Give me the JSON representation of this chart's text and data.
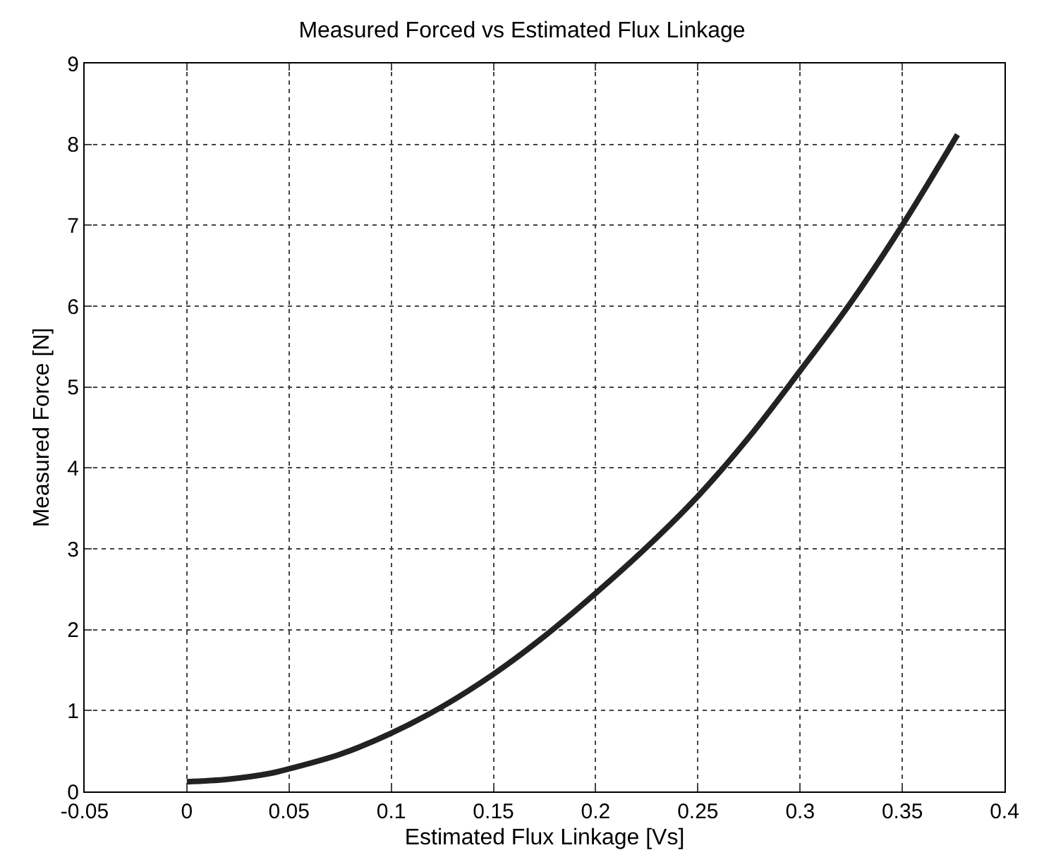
{
  "chart_data": {
    "type": "line",
    "title": "Measured Forced vs Estimated Flux Linkage",
    "xlabel": "Estimated Flux Linkage [Vs]",
    "ylabel": "Measured Force [N]",
    "series": [
      {
        "color": "#222222",
        "x": [
          0,
          0.02,
          0.04,
          0.05,
          0.075,
          0.1,
          0.125,
          0.15,
          0.175,
          0.2,
          0.225,
          0.25,
          0.275,
          0.3,
          0.325,
          0.35,
          0.377
        ],
        "values": [
          0.12,
          0.15,
          0.22,
          0.28,
          0.46,
          0.72,
          1.05,
          1.45,
          1.92,
          2.45,
          3.02,
          3.65,
          4.38,
          5.2,
          6.05,
          7.0,
          8.12
        ]
      }
    ],
    "xlim": [
      -0.05,
      0.4
    ],
    "xticks": [
      -0.05,
      0,
      0.05,
      0.1,
      0.15,
      0.2,
      0.25,
      0.3,
      0.35,
      0.4
    ],
    "ylim": [
      0,
      9
    ],
    "yticks": [
      0,
      1,
      2,
      3,
      4,
      5,
      6,
      7,
      8,
      9
    ],
    "grid": true,
    "line_style": "solid",
    "marker": "none"
  }
}
